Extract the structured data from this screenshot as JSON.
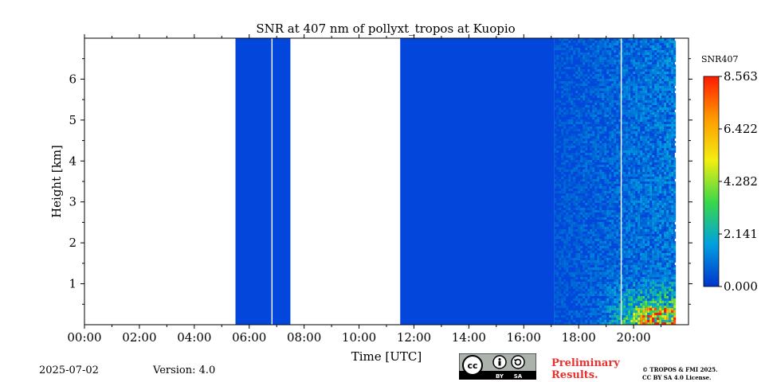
{
  "chart_data": {
    "type": "heatmap",
    "title": "SNR at 407 nm of pollyxt_tropos at Kuopio",
    "xlabel": "Time [UTC]",
    "ylabel": "Height [km]",
    "x_ticks": [
      "00:00",
      "02:00",
      "04:00",
      "06:00",
      "08:00",
      "10:00",
      "12:00",
      "14:00",
      "16:00",
      "18:00",
      "20:00"
    ],
    "x_range_hours": [
      0,
      22
    ],
    "y_ticks": [
      "1",
      "2",
      "3",
      "4",
      "5",
      "6"
    ],
    "y_range_km": [
      0,
      7
    ],
    "colorbar": {
      "label": "SNR407",
      "ticks": [
        "0.000",
        "2.141",
        "4.282",
        "6.422",
        "8.563"
      ],
      "min": 0.0,
      "max": 8.563,
      "colors": [
        "#0033cc",
        "#00a0e0",
        "#38d84a",
        "#f2ee10",
        "#ff9a00",
        "#ff1a00"
      ]
    },
    "data_blocks": [
      {
        "start_h": 5.5,
        "end_h": 7.5,
        "snr": 0.0,
        "gap_at_h": 6.83
      },
      {
        "start_h": 11.5,
        "end_h": 17.1,
        "snr": 0.0
      },
      {
        "start_h": 17.1,
        "end_h": 21.5,
        "snr": "noisy, 0.5-3 aloft, up to 8.5 near surface",
        "gap_at_h": 19.55
      }
    ],
    "no_data": [
      [
        0,
        5.5
      ],
      [
        7.5,
        11.5
      ],
      [
        21.5,
        22
      ]
    ]
  },
  "footer": {
    "date": "2025-07-02",
    "version": "Version: 4.0",
    "license_badge": {
      "by": "BY",
      "sa": "SA"
    },
    "preliminary": [
      "Preliminary",
      "Results."
    ],
    "copyright": [
      "© TROPOS & FMI 2025.",
      "CC BY SA 4.0 License."
    ]
  },
  "colors": {
    "base_blue": "#0346dc",
    "preliminary_red": "#e8302f"
  }
}
